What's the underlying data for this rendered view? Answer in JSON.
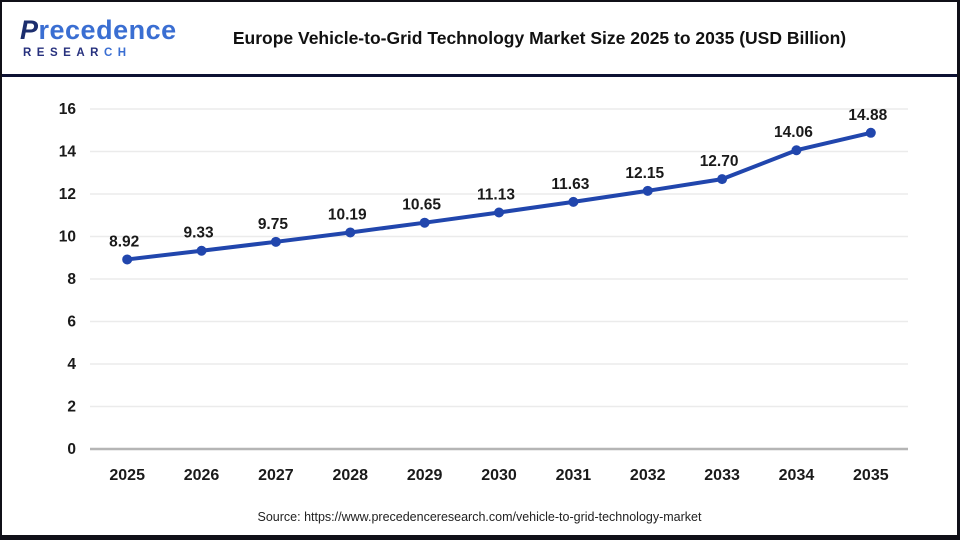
{
  "header": {
    "logo": {
      "brand_first": "P",
      "brand_rest": "recedence",
      "research_dark": "RESEAR",
      "research_blue": "CH"
    },
    "title": "Europe Vehicle-to-Grid Technology Market Size 2025 to 2035 (USD Billion)"
  },
  "chart_data": {
    "type": "line",
    "title": "Europe Vehicle-to-Grid Technology Market Size 2025 to 2035 (USD Billion)",
    "categories": [
      "2025",
      "2026",
      "2027",
      "2028",
      "2029",
      "2030",
      "2031",
      "2032",
      "2033",
      "2034",
      "2035"
    ],
    "values": [
      8.92,
      9.33,
      9.75,
      10.19,
      10.65,
      11.13,
      11.63,
      12.15,
      12.7,
      14.06,
      14.88
    ],
    "data_labels": [
      "8.92",
      "9.33",
      "9.75",
      "10.19",
      "10.65",
      "11.13",
      "11.63",
      "12.15",
      "12.70",
      "14.06",
      "14.88"
    ],
    "xlabel": "",
    "ylabel": "",
    "ylim": [
      0,
      16
    ],
    "ytick_step": 2,
    "grid": "horizontal",
    "legend_position": "none",
    "line_color": "#2146ad",
    "marker_color": "#2146ad",
    "grid_color": "#ebebeb",
    "axis_line_color": "#b5b5b5",
    "label_color": "#1a1a1a"
  },
  "footer": {
    "source": "Source: https://www.precedenceresearch.com/vehicle-to-grid-technology-market"
  }
}
